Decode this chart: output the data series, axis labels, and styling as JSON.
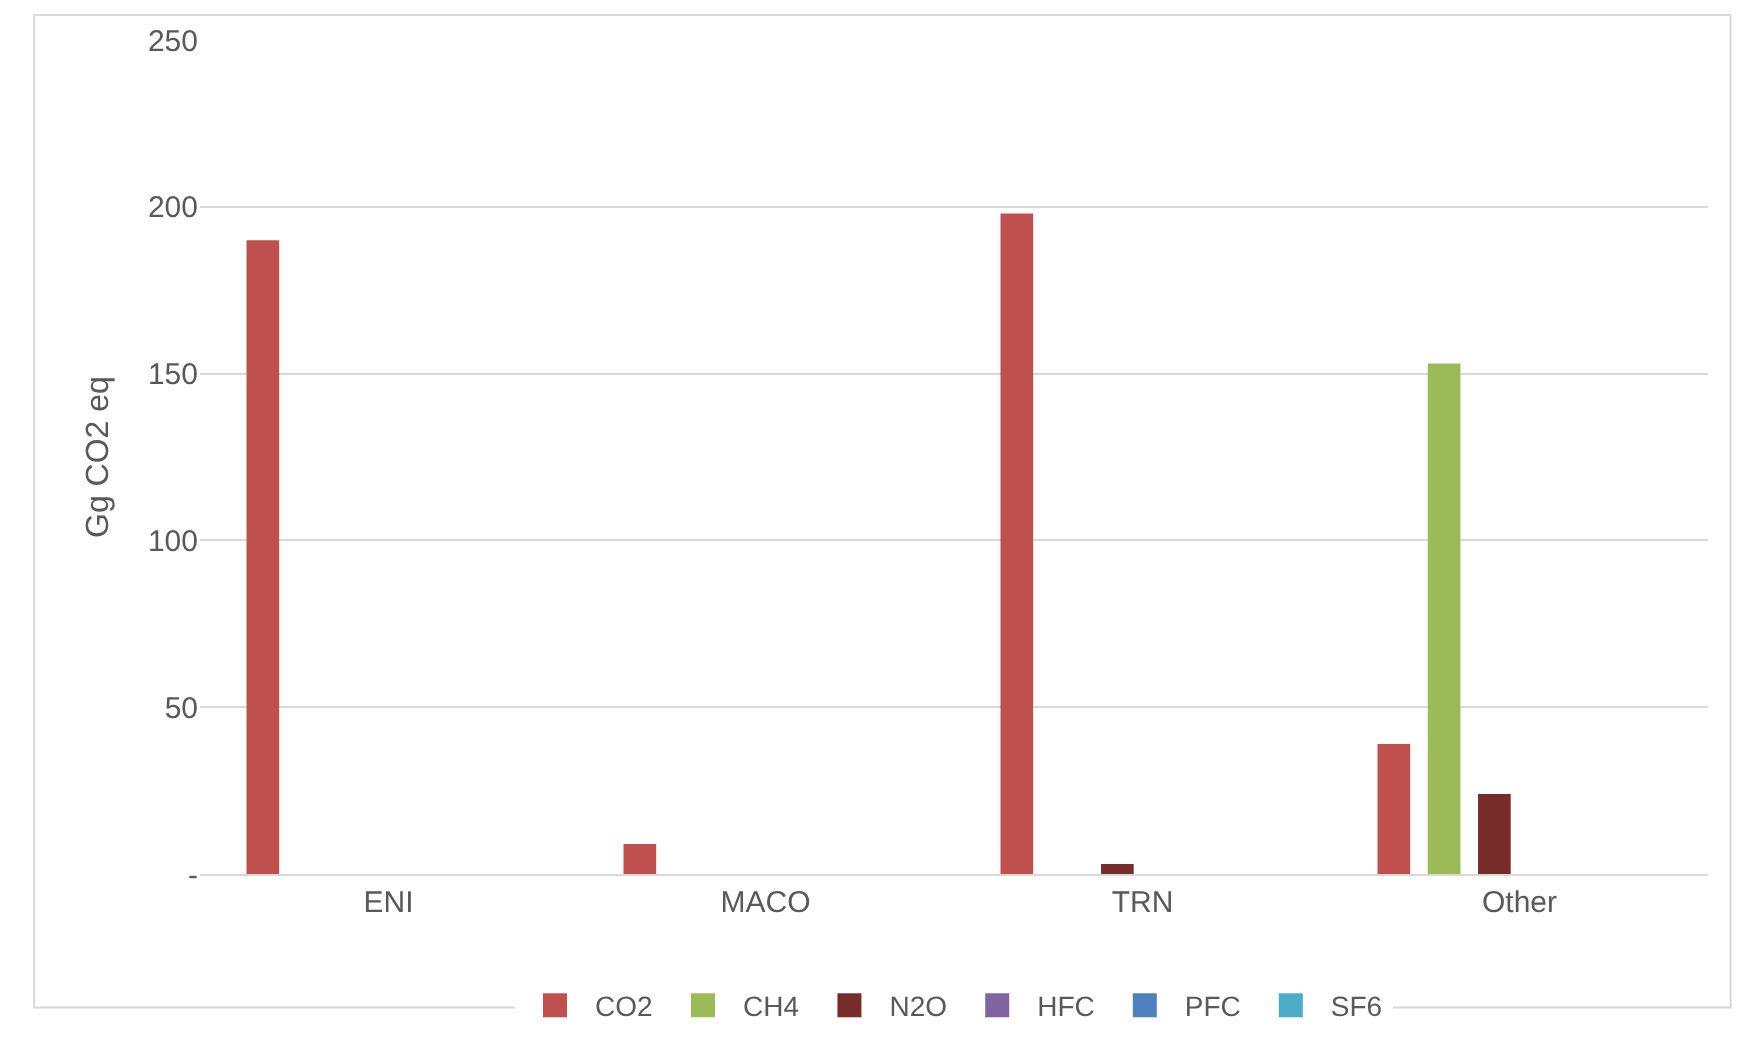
{
  "chart_data": {
    "type": "bar",
    "ylabel": "Gg CO2 eq",
    "categories": [
      "ENI",
      "MACO",
      "TRN",
      "Other"
    ],
    "series": [
      {
        "name": "CO2",
        "color": "#c0504d",
        "values": [
          190,
          9,
          198,
          39
        ]
      },
      {
        "name": "CH4",
        "color": "#9bbb59",
        "values": [
          0,
          0,
          0,
          153
        ]
      },
      {
        "name": "N2O",
        "color": "#772c2a",
        "values": [
          0,
          0,
          3,
          24
        ]
      },
      {
        "name": "HFC",
        "color": "#8064a2",
        "values": [
          0,
          0,
          0,
          0
        ]
      },
      {
        "name": "PFC",
        "color": "#4f81bd",
        "values": [
          0,
          0,
          0,
          0
        ]
      },
      {
        "name": "SF6",
        "color": "#4bacc6",
        "values": [
          0,
          0,
          0,
          0
        ]
      }
    ],
    "ylim": [
      0,
      250
    ],
    "yticks": [
      {
        "value": 0,
        "label": "-"
      },
      50,
      100,
      150,
      200,
      250
    ],
    "grid": "y",
    "legend": "bottom"
  }
}
